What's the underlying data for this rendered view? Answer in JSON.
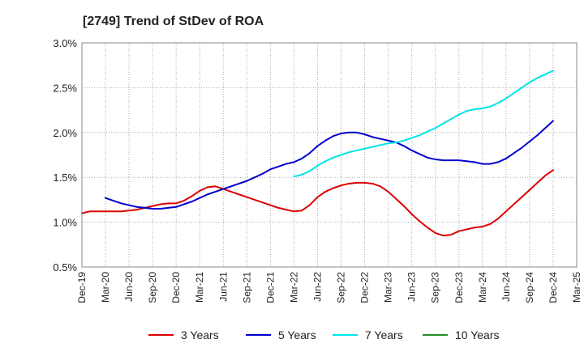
{
  "chart_data": {
    "type": "line",
    "title": "[2749]  Trend of StDev of ROA",
    "xlabel": "",
    "ylabel": "",
    "x_ticks": [
      "Dec-19",
      "Mar-20",
      "Jun-20",
      "Sep-20",
      "Dec-20",
      "Mar-21",
      "Jun-21",
      "Sep-21",
      "Dec-21",
      "Mar-22",
      "Jun-22",
      "Sep-22",
      "Dec-22",
      "Mar-23",
      "Jun-23",
      "Sep-23",
      "Dec-23",
      "Mar-24",
      "Jun-24",
      "Sep-24",
      "Dec-24",
      "Mar-25"
    ],
    "y_ticks": [
      "0.5%",
      "1.0%",
      "1.5%",
      "2.0%",
      "2.5%",
      "3.0%"
    ],
    "ylim": [
      0.5,
      3.0
    ],
    "y_unit": "%",
    "grid": true,
    "legend_position": "bottom",
    "series": [
      {
        "name": "3 Years",
        "color": "#dd0000",
        "points": [
          [
            "Dec-19",
            1.1
          ],
          [
            "Jan-20",
            1.12
          ],
          [
            "Feb-20",
            1.12
          ],
          [
            "Mar-20",
            1.12
          ],
          [
            "Apr-20",
            1.12
          ],
          [
            "May-20",
            1.12
          ],
          [
            "Jun-20",
            1.13
          ],
          [
            "Jul-20",
            1.14
          ],
          [
            "Aug-20",
            1.16
          ],
          [
            "Sep-20",
            1.18
          ],
          [
            "Oct-20",
            1.2
          ],
          [
            "Nov-20",
            1.21
          ],
          [
            "Dec-20",
            1.21
          ],
          [
            "Jan-21",
            1.24
          ],
          [
            "Feb-21",
            1.29
          ],
          [
            "Mar-21",
            1.35
          ],
          [
            "Apr-21",
            1.39
          ],
          [
            "May-21",
            1.4
          ],
          [
            "Jun-21",
            1.37
          ],
          [
            "Jul-21",
            1.34
          ],
          [
            "Aug-21",
            1.31
          ],
          [
            "Sep-21",
            1.28
          ],
          [
            "Oct-21",
            1.25
          ],
          [
            "Nov-21",
            1.22
          ],
          [
            "Dec-21",
            1.19
          ],
          [
            "Jan-22",
            1.16
          ],
          [
            "Feb-22",
            1.14
          ],
          [
            "Mar-22",
            1.12
          ],
          [
            "Apr-22",
            1.13
          ],
          [
            "May-22",
            1.19
          ],
          [
            "Jun-22",
            1.28
          ],
          [
            "Jul-22",
            1.34
          ],
          [
            "Aug-22",
            1.38
          ],
          [
            "Sep-22",
            1.41
          ],
          [
            "Oct-22",
            1.43
          ],
          [
            "Nov-22",
            1.44
          ],
          [
            "Dec-22",
            1.44
          ],
          [
            "Jan-23",
            1.43
          ],
          [
            "Feb-23",
            1.4
          ],
          [
            "Mar-23",
            1.34
          ],
          [
            "Apr-23",
            1.26
          ],
          [
            "May-23",
            1.18
          ],
          [
            "Jun-23",
            1.09
          ],
          [
            "Jul-23",
            1.01
          ],
          [
            "Aug-23",
            0.94
          ],
          [
            "Sep-23",
            0.88
          ],
          [
            "Oct-23",
            0.85
          ],
          [
            "Nov-23",
            0.86
          ],
          [
            "Dec-23",
            0.9
          ],
          [
            "Jan-24",
            0.92
          ],
          [
            "Feb-24",
            0.94
          ],
          [
            "Mar-24",
            0.95
          ],
          [
            "Apr-24",
            0.98
          ],
          [
            "May-24",
            1.04
          ],
          [
            "Jun-24",
            1.12
          ],
          [
            "Jul-24",
            1.2
          ],
          [
            "Aug-24",
            1.28
          ],
          [
            "Sep-24",
            1.36
          ],
          [
            "Oct-24",
            1.44
          ],
          [
            "Nov-24",
            1.52
          ],
          [
            "Dec-24",
            1.58
          ]
        ]
      },
      {
        "name": "5 Years",
        "color": "#0000cc",
        "points": [
          [
            "Mar-20",
            1.27
          ],
          [
            "Apr-20",
            1.24
          ],
          [
            "May-20",
            1.21
          ],
          [
            "Jun-20",
            1.19
          ],
          [
            "Jul-20",
            1.17
          ],
          [
            "Aug-20",
            1.16
          ],
          [
            "Sep-20",
            1.15
          ],
          [
            "Oct-20",
            1.15
          ],
          [
            "Nov-20",
            1.16
          ],
          [
            "Dec-20",
            1.17
          ],
          [
            "Jan-21",
            1.2
          ],
          [
            "Feb-21",
            1.23
          ],
          [
            "Mar-21",
            1.27
          ],
          [
            "Apr-21",
            1.31
          ],
          [
            "May-21",
            1.34
          ],
          [
            "Jun-21",
            1.37
          ],
          [
            "Jul-21",
            1.4
          ],
          [
            "Aug-21",
            1.43
          ],
          [
            "Sep-21",
            1.46
          ],
          [
            "Oct-21",
            1.5
          ],
          [
            "Nov-21",
            1.54
          ],
          [
            "Dec-21",
            1.59
          ],
          [
            "Jan-22",
            1.62
          ],
          [
            "Feb-22",
            1.65
          ],
          [
            "Mar-22",
            1.67
          ],
          [
            "Apr-22",
            1.71
          ],
          [
            "May-22",
            1.77
          ],
          [
            "Jun-22",
            1.85
          ],
          [
            "Jul-22",
            1.91
          ],
          [
            "Aug-22",
            1.96
          ],
          [
            "Sep-22",
            1.99
          ],
          [
            "Oct-22",
            2.0
          ],
          [
            "Nov-22",
            2.0
          ],
          [
            "Dec-22",
            1.98
          ],
          [
            "Jan-23",
            1.95
          ],
          [
            "Feb-23",
            1.93
          ],
          [
            "Mar-23",
            1.91
          ],
          [
            "Apr-23",
            1.89
          ],
          [
            "May-23",
            1.85
          ],
          [
            "Jun-23",
            1.8
          ],
          [
            "Jul-23",
            1.76
          ],
          [
            "Aug-23",
            1.72
          ],
          [
            "Sep-23",
            1.7
          ],
          [
            "Oct-23",
            1.69
          ],
          [
            "Nov-23",
            1.69
          ],
          [
            "Dec-23",
            1.69
          ],
          [
            "Jan-24",
            1.68
          ],
          [
            "Feb-24",
            1.67
          ],
          [
            "Mar-24",
            1.65
          ],
          [
            "Apr-24",
            1.65
          ],
          [
            "May-24",
            1.67
          ],
          [
            "Jun-24",
            1.71
          ],
          [
            "Jul-24",
            1.77
          ],
          [
            "Aug-24",
            1.83
          ],
          [
            "Sep-24",
            1.9
          ],
          [
            "Oct-24",
            1.97
          ],
          [
            "Nov-24",
            2.05
          ],
          [
            "Dec-24",
            2.13
          ]
        ]
      },
      {
        "name": "7 Years",
        "color": "#00e5e5",
        "points": [
          [
            "Mar-22",
            1.51
          ],
          [
            "Apr-22",
            1.53
          ],
          [
            "May-22",
            1.57
          ],
          [
            "Jun-22",
            1.63
          ],
          [
            "Jul-22",
            1.68
          ],
          [
            "Aug-22",
            1.72
          ],
          [
            "Sep-22",
            1.75
          ],
          [
            "Oct-22",
            1.78
          ],
          [
            "Nov-22",
            1.8
          ],
          [
            "Dec-22",
            1.82
          ],
          [
            "Jan-23",
            1.84
          ],
          [
            "Feb-23",
            1.86
          ],
          [
            "Mar-23",
            1.88
          ],
          [
            "Apr-23",
            1.89
          ],
          [
            "May-23",
            1.91
          ],
          [
            "Jun-23",
            1.94
          ],
          [
            "Jul-23",
            1.97
          ],
          [
            "Aug-23",
            2.01
          ],
          [
            "Sep-23",
            2.05
          ],
          [
            "Oct-23",
            2.1
          ],
          [
            "Nov-23",
            2.15
          ],
          [
            "Dec-23",
            2.2
          ],
          [
            "Jan-24",
            2.24
          ],
          [
            "Feb-24",
            2.26
          ],
          [
            "Mar-24",
            2.27
          ],
          [
            "Apr-24",
            2.29
          ],
          [
            "May-24",
            2.33
          ],
          [
            "Jun-24",
            2.38
          ],
          [
            "Jul-24",
            2.44
          ],
          [
            "Aug-24",
            2.5
          ],
          [
            "Sep-24",
            2.56
          ],
          [
            "Oct-24",
            2.61
          ],
          [
            "Nov-24",
            2.65
          ],
          [
            "Dec-24",
            2.69
          ]
        ]
      },
      {
        "name": "10 Years",
        "color": "#228b22",
        "points": []
      }
    ]
  }
}
